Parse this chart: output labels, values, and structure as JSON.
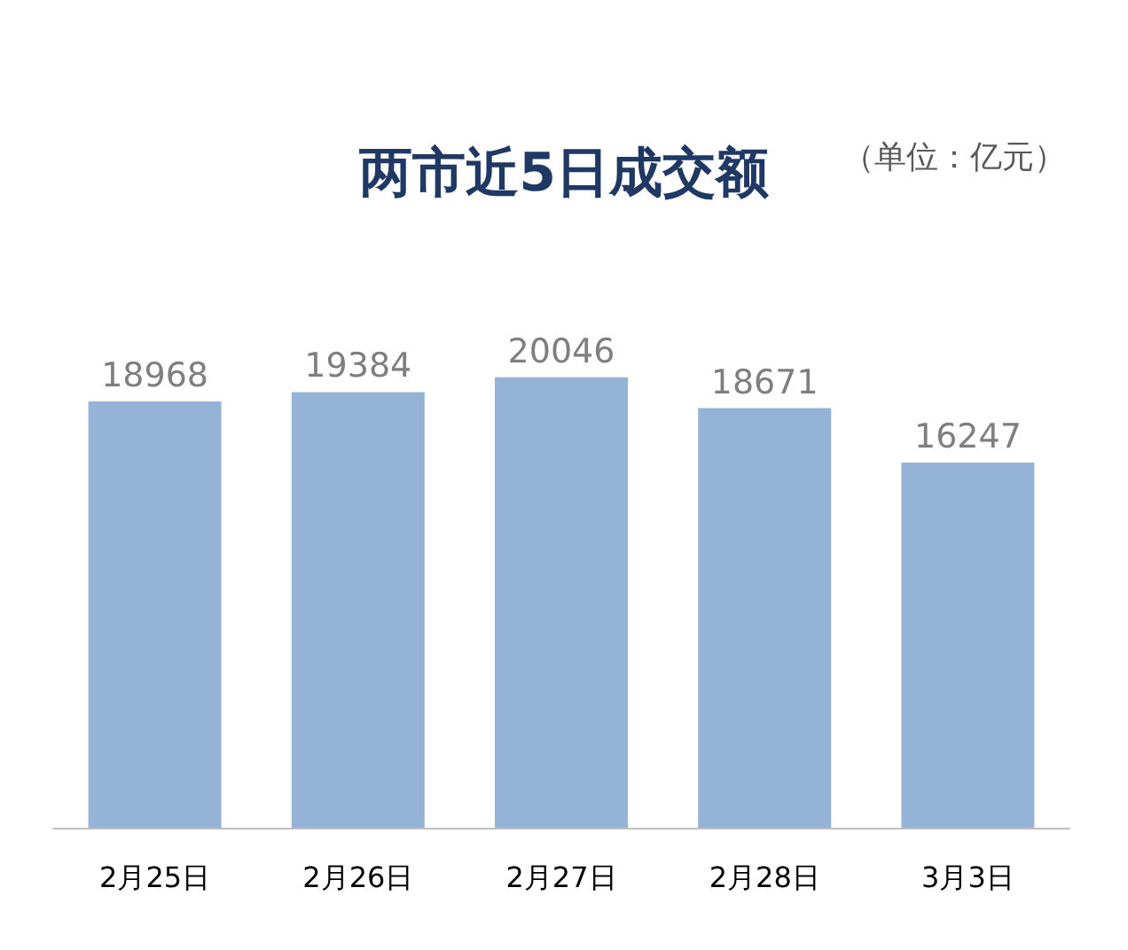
{
  "chart_data": {
    "type": "bar",
    "title": "两市近5日成交额",
    "annotations": [
      "（单位：亿元）"
    ],
    "categories": [
      "2月25日",
      "2月26日",
      "2月27日",
      "2月28日",
      "3月3日"
    ],
    "values": [
      18968,
      19384,
      20046,
      18671,
      16247
    ],
    "color": "#95b3d7",
    "data_labels": true
  }
}
